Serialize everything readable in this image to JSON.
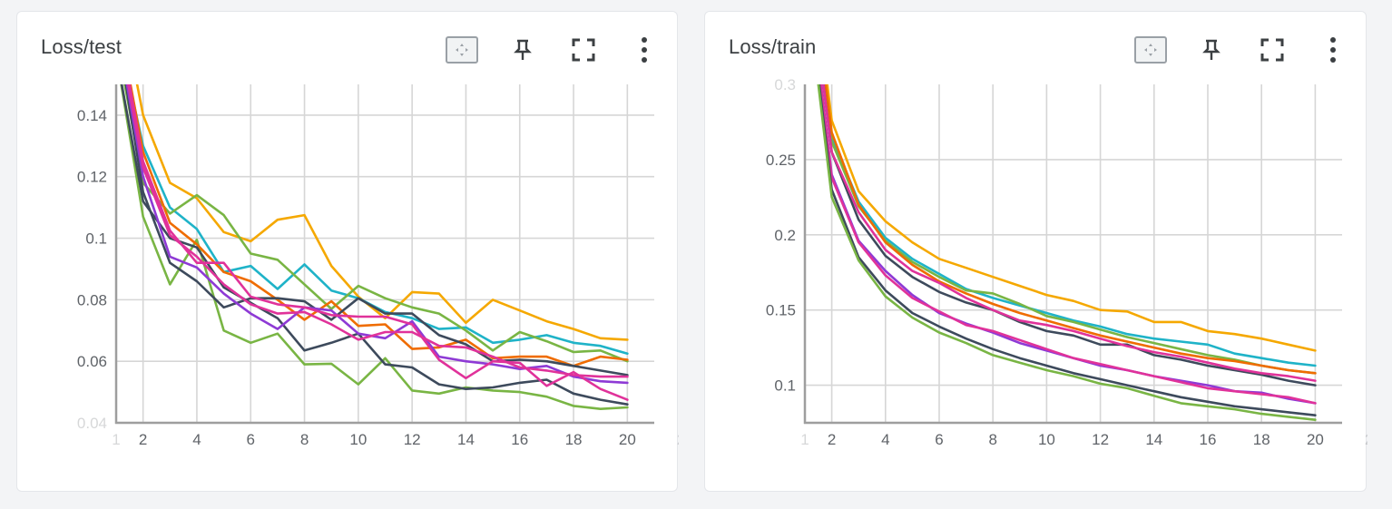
{
  "cards": [
    {
      "title": "Loss/test"
    },
    {
      "title": "Loss/train"
    }
  ],
  "toolbar_icons": [
    "fit-domain-icon",
    "pin-icon",
    "fullscreen-icon",
    "more-vert-icon"
  ],
  "colors": {
    "orange": "#f5a800",
    "cyan": "#1fb3c8",
    "green": "#79b544",
    "darkorange": "#ef6c00",
    "navy": "#3d4a5c",
    "purple": "#8e3ad5",
    "magenta": "#e0329a",
    "grid": "#d6d6d6",
    "axis": "#9e9e9e"
  },
  "chart_data": [
    {
      "type": "line",
      "title": "Loss/test",
      "xlabel": "",
      "ylabel": "",
      "xlim": [
        1,
        21
      ],
      "ylim": [
        0.04,
        0.15
      ],
      "x_ticks": [
        "1",
        "2",
        "4",
        "6",
        "8",
        "10",
        "12",
        "14",
        "16",
        "18",
        "20",
        "2"
      ],
      "y_ticks": [
        "0.04",
        "0.06",
        "0.08",
        "0.1",
        "0.12",
        "0.14"
      ],
      "grid": true,
      "x": [
        1,
        2,
        3,
        4,
        5,
        6,
        7,
        8,
        9,
        10,
        11,
        12,
        13,
        14,
        15,
        16,
        17,
        18,
        19,
        20
      ],
      "series": [
        {
          "color": "orange",
          "values": [
            0.185,
            0.14,
            0.118,
            0.113,
            0.102,
            0.099,
            0.106,
            0.1075,
            0.091,
            0.081,
            0.074,
            0.0825,
            0.082,
            0.0725,
            0.08,
            0.0765,
            0.073,
            0.0705,
            0.0675,
            0.067
          ]
        },
        {
          "color": "cyan",
          "values": [
            0.17,
            0.13,
            0.11,
            0.103,
            0.089,
            0.091,
            0.0835,
            0.0915,
            0.083,
            0.0805,
            0.076,
            0.074,
            0.0705,
            0.071,
            0.066,
            0.067,
            0.0685,
            0.066,
            0.065,
            0.0625
          ]
        },
        {
          "color": "green",
          "values": [
            0.165,
            0.118,
            0.108,
            0.114,
            0.1075,
            0.095,
            0.093,
            0.085,
            0.077,
            0.0845,
            0.0805,
            0.0775,
            0.0755,
            0.07,
            0.0635,
            0.0695,
            0.0665,
            0.063,
            0.0635,
            0.06
          ]
        },
        {
          "color": "green",
          "values": [
            0.16,
            0.107,
            0.085,
            0.0995,
            0.07,
            0.066,
            0.069,
            0.059,
            0.0592,
            0.0525,
            0.061,
            0.0505,
            0.0495,
            0.0515,
            0.0505,
            0.05,
            0.0485,
            0.0455,
            0.0445,
            0.045
          ]
        },
        {
          "color": "darkorange",
          "values": [
            0.175,
            0.128,
            0.105,
            0.098,
            0.089,
            0.086,
            0.08,
            0.0735,
            0.0795,
            0.0715,
            0.072,
            0.064,
            0.0645,
            0.067,
            0.061,
            0.0615,
            0.0615,
            0.0585,
            0.0615,
            0.0605
          ]
        },
        {
          "color": "navy",
          "values": [
            0.17,
            0.115,
            0.092,
            0.086,
            0.0775,
            0.0805,
            0.0805,
            0.0795,
            0.0735,
            0.0805,
            0.0755,
            0.0755,
            0.0685,
            0.0655,
            0.06,
            0.0605,
            0.06,
            0.0585,
            0.057,
            0.0555
          ]
        },
        {
          "color": "navy",
          "values": [
            0.16,
            0.112,
            0.1,
            0.097,
            0.084,
            0.079,
            0.074,
            0.0635,
            0.066,
            0.069,
            0.059,
            0.058,
            0.0525,
            0.051,
            0.0515,
            0.053,
            0.054,
            0.0495,
            0.0475,
            0.046
          ]
        },
        {
          "color": "purple",
          "values": [
            0.17,
            0.12,
            0.094,
            0.0905,
            0.082,
            0.0755,
            0.0705,
            0.0775,
            0.0765,
            0.069,
            0.0675,
            0.073,
            0.0615,
            0.06,
            0.059,
            0.0575,
            0.0585,
            0.055,
            0.0535,
            0.053
          ]
        },
        {
          "color": "magenta",
          "values": [
            0.175,
            0.125,
            0.1025,
            0.092,
            0.092,
            0.081,
            0.0785,
            0.0775,
            0.075,
            0.0745,
            0.0745,
            0.072,
            0.0605,
            0.0545,
            0.06,
            0.0595,
            0.052,
            0.0565,
            0.051,
            0.0475
          ]
        },
        {
          "color": "magenta",
          "values": [
            0.172,
            0.123,
            0.101,
            0.094,
            0.085,
            0.0785,
            0.0755,
            0.076,
            0.072,
            0.067,
            0.0695,
            0.0695,
            0.065,
            0.0645,
            0.0615,
            0.058,
            0.057,
            0.0555,
            0.055,
            0.055
          ]
        }
      ]
    },
    {
      "type": "line",
      "title": "Loss/train",
      "xlabel": "",
      "ylabel": "",
      "xlim": [
        1,
        21
      ],
      "ylim": [
        0.075,
        0.3
      ],
      "x_ticks": [
        "1",
        "2",
        "4",
        "6",
        "8",
        "10",
        "12",
        "14",
        "16",
        "18",
        "20",
        "2"
      ],
      "y_ticks": [
        "0.1",
        "0.15",
        "0.2",
        "0.25",
        "0.3"
      ],
      "grid": true,
      "x": [
        1,
        2,
        3,
        4,
        5,
        6,
        7,
        8,
        9,
        10,
        11,
        12,
        13,
        14,
        15,
        16,
        17,
        18,
        19,
        20
      ],
      "series": [
        {
          "color": "orange",
          "values": [
            0.42,
            0.276,
            0.229,
            0.209,
            0.195,
            0.184,
            0.178,
            0.172,
            0.166,
            0.16,
            0.156,
            0.15,
            0.149,
            0.142,
            0.142,
            0.136,
            0.134,
            0.131,
            0.127,
            0.123
          ]
        },
        {
          "color": "cyan",
          "values": [
            0.41,
            0.265,
            0.222,
            0.198,
            0.184,
            0.174,
            0.164,
            0.158,
            0.153,
            0.148,
            0.143,
            0.139,
            0.134,
            0.131,
            0.129,
            0.127,
            0.121,
            0.118,
            0.115,
            0.113
          ]
        },
        {
          "color": "green",
          "values": [
            0.405,
            0.262,
            0.219,
            0.196,
            0.182,
            0.172,
            0.163,
            0.161,
            0.154,
            0.146,
            0.142,
            0.137,
            0.132,
            0.128,
            0.124,
            0.12,
            0.117,
            0.113,
            0.11,
            0.108
          ]
        },
        {
          "color": "darkorange",
          "values": [
            0.41,
            0.268,
            0.22,
            0.195,
            0.18,
            0.169,
            0.161,
            0.154,
            0.148,
            0.143,
            0.138,
            0.133,
            0.129,
            0.125,
            0.121,
            0.118,
            0.116,
            0.113,
            0.11,
            0.108
          ]
        },
        {
          "color": "navy",
          "values": [
            0.4,
            0.255,
            0.21,
            0.186,
            0.172,
            0.162,
            0.155,
            0.15,
            0.142,
            0.136,
            0.133,
            0.127,
            0.127,
            0.12,
            0.117,
            0.113,
            0.11,
            0.107,
            0.103,
            0.1
          ]
        },
        {
          "color": "magenta",
          "values": [
            0.4,
            0.255,
            0.215,
            0.19,
            0.176,
            0.168,
            0.158,
            0.15,
            0.143,
            0.14,
            0.136,
            0.131,
            0.126,
            0.122,
            0.119,
            0.115,
            0.111,
            0.108,
            0.106,
            0.103
          ]
        },
        {
          "color": "purple",
          "values": [
            0.39,
            0.24,
            0.196,
            0.176,
            0.16,
            0.148,
            0.141,
            0.135,
            0.128,
            0.123,
            0.118,
            0.113,
            0.11,
            0.106,
            0.103,
            0.1,
            0.096,
            0.095,
            0.091,
            0.088
          ]
        },
        {
          "color": "magenta",
          "values": [
            0.39,
            0.238,
            0.195,
            0.173,
            0.158,
            0.149,
            0.14,
            0.136,
            0.13,
            0.124,
            0.118,
            0.114,
            0.11,
            0.106,
            0.102,
            0.098,
            0.096,
            0.094,
            0.092,
            0.088
          ]
        },
        {
          "color": "navy",
          "values": [
            0.38,
            0.23,
            0.185,
            0.163,
            0.148,
            0.139,
            0.131,
            0.124,
            0.118,
            0.113,
            0.108,
            0.104,
            0.1,
            0.096,
            0.092,
            0.089,
            0.086,
            0.084,
            0.082,
            0.08
          ]
        },
        {
          "color": "green",
          "values": [
            0.375,
            0.225,
            0.183,
            0.159,
            0.145,
            0.135,
            0.128,
            0.12,
            0.115,
            0.11,
            0.106,
            0.101,
            0.098,
            0.093,
            0.088,
            0.086,
            0.084,
            0.081,
            0.079,
            0.077
          ]
        }
      ]
    }
  ]
}
